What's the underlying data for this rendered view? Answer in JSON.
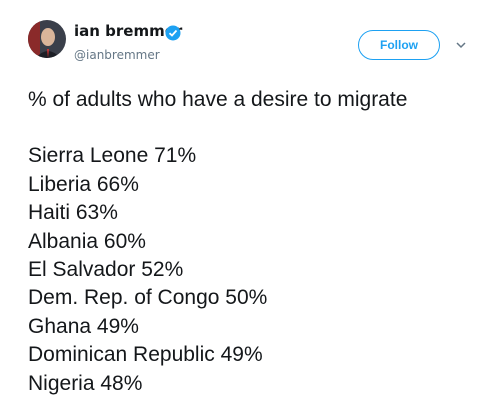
{
  "user": {
    "name": "ian bremmer",
    "handle": "@ianbremmer"
  },
  "follow_button": "Follow",
  "tweet": {
    "heading": "% of adults who have a desire to migrate",
    "lines": [
      "Sierra Leone 71%",
      "Liberia 66%",
      "Haiti 63%",
      "Albania 60%",
      "El Salvador 52%",
      "Dem. Rep. of Congo 50%",
      "Ghana 49%",
      "Dominican Republic 49%",
      "Nigeria 48%"
    ]
  }
}
